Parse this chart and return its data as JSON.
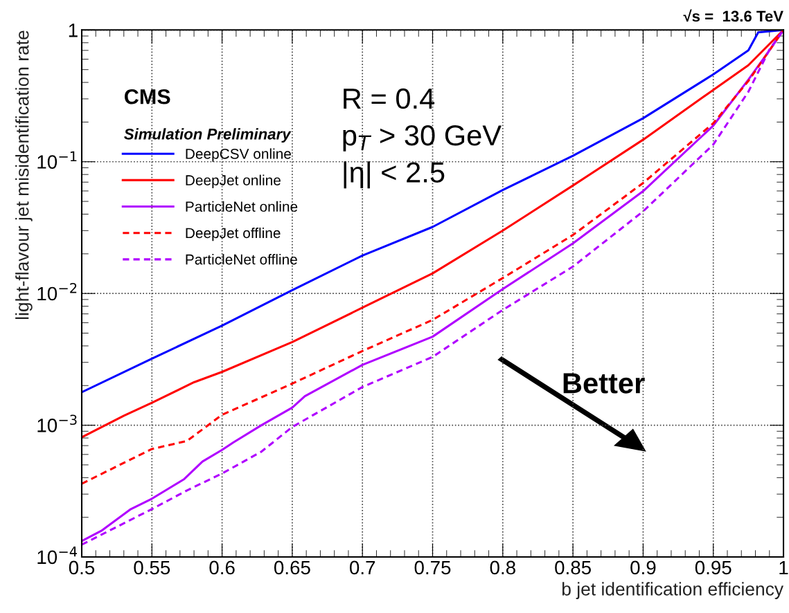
{
  "chart_data": {
    "type": "line",
    "xlabel": "b jet identification efficiency",
    "ylabel": "light-flavour jet misidentification rate",
    "log": "y",
    "xlim": [
      0.5,
      1
    ],
    "ylim": [
      0.0001,
      1
    ],
    "xticks": [
      0.5,
      0.55,
      0.6,
      0.65,
      0.7,
      0.75,
      0.8,
      0.85,
      0.9,
      0.95,
      1
    ],
    "yticks": [
      {
        "value": 0.0001,
        "label": "10$^{−4}$"
      },
      {
        "value": 0.001,
        "label": "10$^{−3}$"
      },
      {
        "value": 0.01,
        "label": "10$^{−2}$"
      },
      {
        "value": 0.1,
        "label": "10$^{−1}$"
      },
      1
    ],
    "grid": true,
    "legend": "top left",
    "marker": "none",
    "series": [
      {
        "name": "DeepCSV online",
        "color": "#0000ff",
        "line_style": "solid",
        "x": [
          0.5,
          0.55,
          0.6,
          0.65,
          0.7,
          0.75,
          0.8,
          0.85,
          0.9,
          0.95,
          0.975,
          0.982,
          1.0
        ],
        "values": [
          0.00178,
          0.0032,
          0.0057,
          0.0106,
          0.0194,
          0.032,
          0.061,
          0.111,
          0.214,
          0.46,
          0.7,
          0.96,
          1.0
        ]
      },
      {
        "name": "DeepJet online",
        "color": "#ff0000",
        "line_style": "solid",
        "x": [
          0.5,
          0.53,
          0.55,
          0.58,
          0.6,
          0.65,
          0.7,
          0.75,
          0.8,
          0.85,
          0.9,
          0.95,
          0.975,
          1.0
        ],
        "values": [
          0.00081,
          0.00118,
          0.00148,
          0.00212,
          0.00254,
          0.00428,
          0.0078,
          0.0142,
          0.03,
          0.066,
          0.147,
          0.351,
          0.54,
          1.0
        ]
      },
      {
        "name": "ParticleNet online",
        "color": "#b000ff",
        "line_style": "solid",
        "x": [
          0.5,
          0.514,
          0.535,
          0.55,
          0.573,
          0.586,
          0.6,
          0.608,
          0.628,
          0.65,
          0.659,
          0.7,
          0.75,
          0.8,
          0.85,
          0.9,
          0.95,
          0.975,
          0.99,
          1.0
        ],
        "values": [
          0.000132,
          0.000158,
          0.000231,
          0.000277,
          0.00039,
          0.00053,
          0.00065,
          0.00074,
          0.001,
          0.00136,
          0.00166,
          0.00287,
          0.0047,
          0.0108,
          0.024,
          0.0598,
          0.188,
          0.42,
          0.7,
          1.0
        ]
      },
      {
        "name": "DeepJet offline",
        "color": "#ff0000",
        "line_style": "dashed",
        "x": [
          0.5,
          0.55,
          0.575,
          0.6,
          0.65,
          0.7,
          0.75,
          0.8,
          0.85,
          0.9,
          0.95,
          0.975,
          1.0
        ],
        "values": [
          0.00036,
          0.00066,
          0.00076,
          0.0012,
          0.00207,
          0.00366,
          0.0063,
          0.0131,
          0.0278,
          0.069,
          0.196,
          0.41,
          1.0
        ]
      },
      {
        "name": "ParticleNet offline",
        "color": "#b000ff",
        "line_style": "dashed",
        "x": [
          0.5,
          0.55,
          0.575,
          0.6,
          0.628,
          0.65,
          0.7,
          0.75,
          0.8,
          0.85,
          0.9,
          0.95,
          0.975,
          0.99,
          1.0
        ],
        "values": [
          0.000124,
          0.000231,
          0.00032,
          0.00043,
          0.00063,
          0.00097,
          0.00195,
          0.0033,
          0.0075,
          0.016,
          0.042,
          0.135,
          0.34,
          0.71,
          1.0
        ]
      }
    ],
    "annotations": [
      "CMS",
      "Simulation Preliminary",
      "R = 0.4",
      "p$_{T}$ > 30 GeV",
      "|η| < 2.5",
      "√s =  13.6 TeV",
      "Better"
    ]
  }
}
